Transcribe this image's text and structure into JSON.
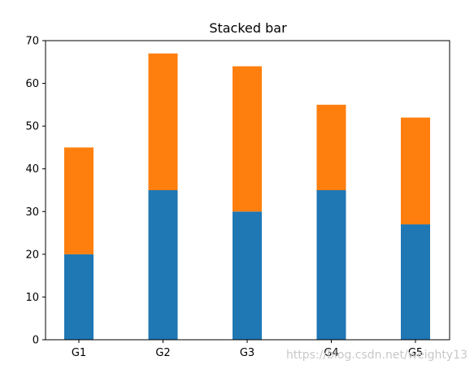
{
  "chart_data": {
    "type": "bar",
    "stacked": true,
    "title": "Stacked bar",
    "xlabel": "",
    "ylabel": "",
    "categories": [
      "G1",
      "G2",
      "G3",
      "G4",
      "G5"
    ],
    "series": [
      {
        "values": [
          20,
          35,
          30,
          35,
          27
        ],
        "color": "#1f77b4"
      },
      {
        "values": [
          25,
          32,
          34,
          20,
          25
        ],
        "color": "#ff7f0e"
      }
    ],
    "ylim": [
      0,
      70
    ],
    "yticks": [
      0,
      10,
      20,
      30,
      40,
      50,
      60,
      70
    ],
    "grid": false,
    "legend": "none"
  },
  "watermark": "https://blog.csdn.net/weighty13"
}
